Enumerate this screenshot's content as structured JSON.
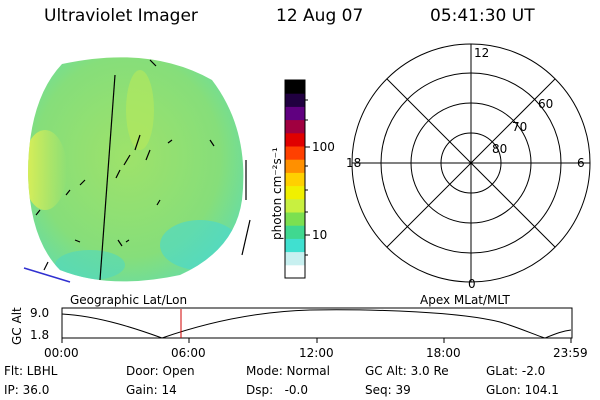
{
  "header": {
    "title": "Ultraviolet Imager",
    "date": "12 Aug 07",
    "time": "05:41:30 UT"
  },
  "colorbar": {
    "label": "photon cm⁻²s⁻¹",
    "ticks": [
      "100",
      "10"
    ],
    "colors": [
      "#ffffff",
      "#c8f0f0",
      "#40e0d0",
      "#40d890",
      "#7ce050",
      "#c8f040",
      "#f0f000",
      "#ffd000",
      "#ff9000",
      "#ff4000",
      "#e00000",
      "#a00040",
      "#600080",
      "#200040",
      "#000000"
    ]
  },
  "polar_grid": {
    "mlt_labels": {
      "top": "12",
      "left": "18",
      "right": "6",
      "bottom": "0"
    },
    "lat_labels": [
      "60",
      "70",
      "80"
    ]
  },
  "timeline": {
    "left_label": "Geographic Lat/Lon",
    "right_label": "Apex MLat/MLT",
    "axis_title": "GC Alt",
    "y_ticks": [
      "9.0",
      "1.8"
    ],
    "x_ticks": [
      "00:00",
      "06:00",
      "12:00",
      "18:00",
      "23:59"
    ]
  },
  "footer": {
    "row1": {
      "filter": "Flt: LBHL",
      "door": "Door: Open",
      "mode": "Mode: Normal",
      "gc_alt": "GC Alt: 3.0 Re",
      "glat": "GLat: -2.0"
    },
    "row2": {
      "ip": "IP: 36.0",
      "gain": "Gain: 14",
      "dsp": "Dsp:   -0.0",
      "seq": "Seq: 39",
      "glon": "GLon: 104.1"
    }
  }
}
